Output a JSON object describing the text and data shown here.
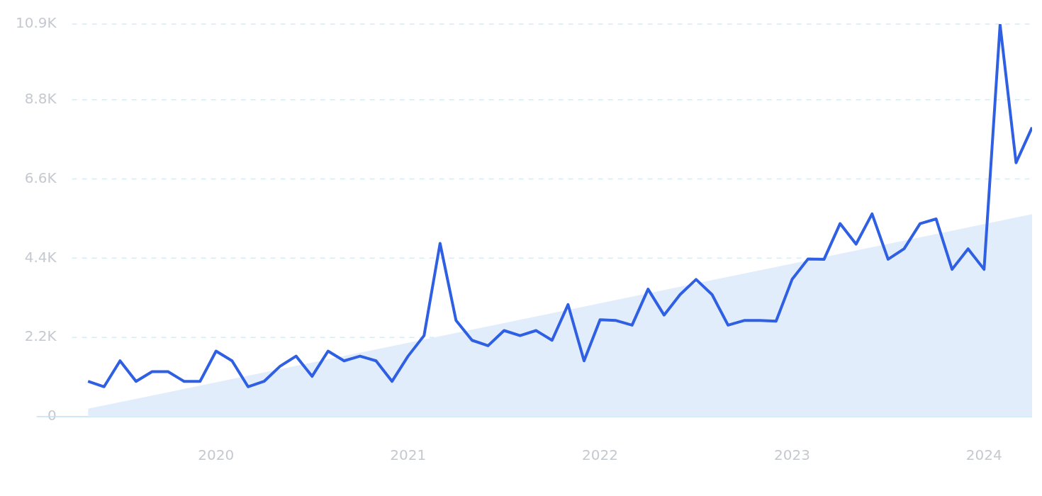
{
  "chart_data": {
    "type": "line",
    "x": [
      "2019-05",
      "2019-06",
      "2019-07",
      "2019-08",
      "2019-09",
      "2019-10",
      "2019-11",
      "2019-12",
      "2020-01",
      "2020-02",
      "2020-03",
      "2020-04",
      "2020-05",
      "2020-06",
      "2020-07",
      "2020-08",
      "2020-09",
      "2020-10",
      "2020-11",
      "2020-12",
      "2021-01",
      "2021-02",
      "2021-03",
      "2021-04",
      "2021-05",
      "2021-06",
      "2021-07",
      "2021-08",
      "2021-09",
      "2021-10",
      "2021-11",
      "2021-12",
      "2022-01",
      "2022-02",
      "2022-03",
      "2022-04",
      "2022-05",
      "2022-06",
      "2022-07",
      "2022-08",
      "2022-09",
      "2022-10",
      "2022-11",
      "2022-12",
      "2023-01",
      "2023-02",
      "2023-03",
      "2023-04",
      "2023-05",
      "2023-06",
      "2023-07",
      "2023-08",
      "2023-09",
      "2023-10",
      "2023-11",
      "2023-12",
      "2024-01",
      "2024-02",
      "2024-03",
      "2024-04"
    ],
    "series": [
      {
        "type": "area",
        "x": [
          "2019-05",
          "2024-04"
        ],
        "values": [
          220,
          5620
        ],
        "color": "#e2edfb"
      },
      {
        "color": "#2f5fe3",
        "values": [
          980,
          830,
          1550,
          980,
          1250,
          1250,
          980,
          980,
          1820,
          1550,
          830,
          980,
          1400,
          1680,
          1120,
          1820,
          1550,
          1680,
          1550,
          980,
          1680,
          2250,
          4810,
          2670,
          2120,
          1970,
          2390,
          2250,
          2390,
          2120,
          3110,
          1550,
          2690,
          2670,
          2540,
          3540,
          2820,
          3390,
          3810,
          3390,
          2540,
          2670,
          2670,
          2650,
          3810,
          4380,
          4370,
          5360,
          4790,
          5630,
          4370,
          4660,
          5360,
          5490,
          4090,
          4660,
          4090,
          10880,
          7050,
          8030
        ]
      }
    ],
    "xlim": [
      "2019-04",
      "2024-04"
    ],
    "xticks": [
      {
        "value": "2020",
        "label": "2020"
      },
      {
        "value": "2021",
        "label": "2021"
      },
      {
        "value": "2022",
        "label": "2022"
      },
      {
        "value": "2023",
        "label": "2023"
      },
      {
        "value": "2024",
        "label": "2024"
      }
    ],
    "ylim": [
      0,
      10900
    ],
    "yticks": [
      0,
      {
        "value": 2200,
        "label": "2.2K"
      },
      {
        "value": 4400,
        "label": "4.4K"
      },
      {
        "value": 6600,
        "label": "6.6K"
      },
      {
        "value": 8800,
        "label": "8.8K"
      },
      {
        "value": 10900,
        "label": "10.9K"
      }
    ],
    "grid": "y",
    "legend": false
  }
}
